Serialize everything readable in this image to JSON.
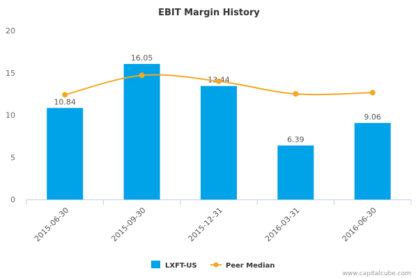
{
  "chart_data": {
    "type": "bar",
    "title": "EBIT Margin History",
    "categories": [
      "2015-06-30",
      "2015-09-30",
      "2015-12-31",
      "2016-03-31",
      "2016-06-30"
    ],
    "series": [
      {
        "name": "LXFT-US",
        "kind": "bar",
        "color": "#00a2e8",
        "values": [
          10.84,
          16.05,
          13.44,
          6.39,
          9.06
        ],
        "labels": [
          "10.84",
          "16.05",
          "13.44",
          "6.39",
          "9.06"
        ]
      },
      {
        "name": "Peer Median",
        "kind": "line",
        "color": "#f5a623",
        "values": [
          12.4,
          14.7,
          14.0,
          12.5,
          12.65
        ]
      }
    ],
    "y_ticks": [
      "0",
      "5",
      "10",
      "15",
      "20"
    ],
    "ylim": [
      0,
      20
    ],
    "grid": false,
    "legend": "bottom-center"
  },
  "credit": "www.capitalcube.com"
}
